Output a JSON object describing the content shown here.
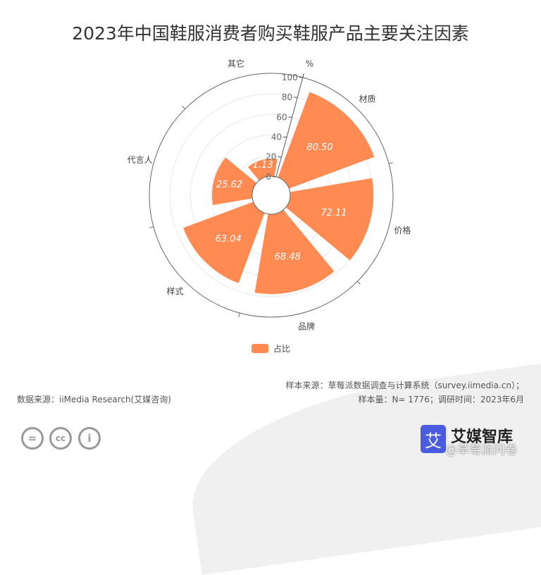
{
  "chart_data": {
    "type": "polar-bar",
    "title": "2023年中国鞋服消费者购买鞋服产品主要关注因素",
    "radial_unit": "%",
    "rlim": [
      0,
      100
    ],
    "radial_ticks": [
      "0",
      "20",
      "40",
      "60",
      "80",
      "100"
    ],
    "categories": [
      "材质",
      "价格",
      "品牌",
      "样式",
      "代言人",
      "其它"
    ],
    "series": [
      {
        "name": "占比",
        "values": [
          80.5,
          72.11,
          68.48,
          63.04,
          25.62,
          1.13
        ]
      }
    ],
    "value_labels": [
      "80.50",
      "72.11",
      "68.48",
      "63.04",
      "25.62",
      "1.13"
    ],
    "legend": "bottom",
    "color": "#FF8A52",
    "grid": true
  },
  "footer": {
    "source_left": "数据来源：iiMedia Research(艾媒咨询)",
    "sample_source": "样本来源：草莓派数据调查与计算系统（survey.iimedia.cn）；",
    "sample_info": "样本量：N= 1776；调研时间：2023年6月",
    "brand": "艾媒智库",
    "watermark": "@草莓派问卷",
    "logo_char": "艾"
  }
}
